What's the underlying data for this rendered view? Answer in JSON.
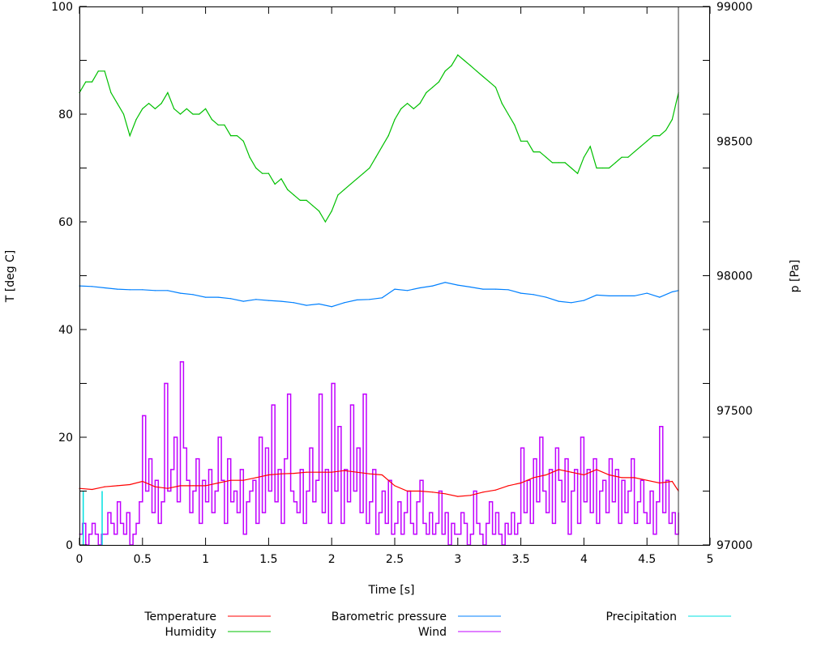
{
  "chart_data": {
    "type": "line",
    "title": "",
    "xlabel": "Time [s]",
    "ylabel": "T [deg C]",
    "y2label": "p [Pa]",
    "xlim": [
      0,
      5
    ],
    "ylim": [
      0,
      100
    ],
    "y2lim": [
      97000,
      99000
    ],
    "xticks": [
      "0",
      "0.5",
      "1",
      "1.5",
      "2",
      "2.5",
      "3",
      "3.5",
      "4",
      "4.5",
      "5"
    ],
    "yticks": [
      "0",
      "20",
      "40",
      "60",
      "80",
      "100"
    ],
    "y2ticks": [
      "97000",
      "97500",
      "98000",
      "98500",
      "99000"
    ],
    "grid": false,
    "legend_placement": "bottom",
    "series": [
      {
        "name": "Temperature",
        "color": "#ff0000",
        "axis": "y",
        "style": "lines",
        "x": [
          0,
          0.1,
          0.2,
          0.3,
          0.4,
          0.5,
          0.6,
          0.7,
          0.8,
          0.9,
          1.0,
          1.1,
          1.2,
          1.3,
          1.4,
          1.5,
          1.6,
          1.7,
          1.8,
          1.9,
          2.0,
          2.1,
          2.2,
          2.3,
          2.4,
          2.5,
          2.6,
          2.7,
          2.8,
          2.9,
          3.0,
          3.1,
          3.2,
          3.3,
          3.4,
          3.5,
          3.6,
          3.7,
          3.8,
          3.9,
          4.0,
          4.1,
          4.2,
          4.3,
          4.4,
          4.5,
          4.6,
          4.7,
          4.75
        ],
        "values": [
          10.5,
          10.3,
          10.8,
          11,
          11.2,
          11.8,
          10.8,
          10.5,
          11,
          11,
          11,
          11.5,
          12,
          12,
          12.5,
          13,
          13.2,
          13.3,
          13.5,
          13.5,
          13.5,
          13.8,
          13.5,
          13.2,
          13,
          11,
          10,
          10,
          9.8,
          9.5,
          9,
          9.2,
          9.8,
          10.2,
          11,
          11.5,
          12.5,
          13,
          14,
          13.5,
          13,
          14,
          13,
          12.5,
          12.5,
          12,
          11.5,
          11.8,
          10
        ]
      },
      {
        "name": "Humidity",
        "color": "#00c000",
        "axis": "y",
        "style": "lines",
        "x": [
          0,
          0.05,
          0.1,
          0.15,
          0.2,
          0.25,
          0.3,
          0.35,
          0.4,
          0.45,
          0.5,
          0.55,
          0.6,
          0.65,
          0.7,
          0.75,
          0.8,
          0.85,
          0.9,
          0.95,
          1.0,
          1.05,
          1.1,
          1.15,
          1.2,
          1.25,
          1.3,
          1.35,
          1.4,
          1.45,
          1.5,
          1.55,
          1.6,
          1.65,
          1.7,
          1.75,
          1.8,
          1.85,
          1.9,
          1.95,
          2.0,
          2.05,
          2.1,
          2.15,
          2.2,
          2.25,
          2.3,
          2.35,
          2.4,
          2.45,
          2.5,
          2.55,
          2.6,
          2.65,
          2.7,
          2.75,
          2.8,
          2.85,
          2.9,
          2.95,
          3.0,
          3.05,
          3.1,
          3.15,
          3.2,
          3.25,
          3.3,
          3.35,
          3.4,
          3.45,
          3.5,
          3.55,
          3.6,
          3.65,
          3.7,
          3.75,
          3.8,
          3.85,
          3.9,
          3.95,
          4.0,
          4.05,
          4.1,
          4.15,
          4.2,
          4.25,
          4.3,
          4.35,
          4.4,
          4.45,
          4.5,
          4.55,
          4.6,
          4.65,
          4.7,
          4.75
        ],
        "values": [
          84,
          86,
          86,
          88,
          88,
          84,
          82,
          80,
          76,
          79,
          81,
          82,
          81,
          82,
          84,
          81,
          80,
          81,
          80,
          80,
          81,
          79,
          78,
          78,
          76,
          76,
          75,
          72,
          70,
          69,
          69,
          67,
          68,
          66,
          65,
          64,
          64,
          63,
          62,
          60,
          62,
          65,
          66,
          67,
          68,
          69,
          70,
          72,
          74,
          76,
          79,
          81,
          82,
          81,
          82,
          84,
          85,
          86,
          88,
          89,
          91,
          90,
          89,
          88,
          87,
          86,
          85,
          82,
          80,
          78,
          75,
          75,
          73,
          73,
          72,
          71,
          71,
          71,
          70,
          69,
          72,
          74,
          70,
          70,
          70,
          71,
          72,
          72,
          73,
          74,
          75,
          76,
          76,
          77,
          79,
          84
        ]
      },
      {
        "name": "Barometric pressure",
        "color": "#0080ff",
        "axis": "y2",
        "style": "lines",
        "x": [
          0,
          0.1,
          0.2,
          0.3,
          0.4,
          0.5,
          0.6,
          0.7,
          0.8,
          0.9,
          1.0,
          1.1,
          1.2,
          1.3,
          1.4,
          1.5,
          1.6,
          1.7,
          1.8,
          1.9,
          2.0,
          2.1,
          2.2,
          2.3,
          2.4,
          2.5,
          2.6,
          2.7,
          2.8,
          2.9,
          3.0,
          3.1,
          3.2,
          3.3,
          3.4,
          3.5,
          3.6,
          3.7,
          3.8,
          3.9,
          4.0,
          4.1,
          4.2,
          4.3,
          4.4,
          4.5,
          4.6,
          4.7,
          4.75
        ],
        "values": [
          97962,
          97960,
          97955,
          97950,
          97948,
          97948,
          97945,
          97945,
          97935,
          97930,
          97920,
          97920,
          97915,
          97905,
          97912,
          97908,
          97905,
          97900,
          97890,
          97895,
          97885,
          97900,
          97910,
          97912,
          97918,
          97950,
          97945,
          97955,
          97962,
          97975,
          97965,
          97958,
          97950,
          97950,
          97948,
          97935,
          97930,
          97920,
          97905,
          97900,
          97908,
          97928,
          97925,
          97925,
          97925,
          97935,
          97920,
          97940,
          97945
        ]
      },
      {
        "name": "Wind",
        "color": "#c000ff",
        "axis": "y",
        "style": "steps",
        "x_start": 0,
        "x_step": 0.025,
        "values": [
          2,
          4,
          0,
          2,
          4,
          2,
          0,
          2,
          2,
          6,
          4,
          2,
          8,
          4,
          2,
          6,
          0,
          2,
          4,
          8,
          24,
          10,
          16,
          6,
          12,
          4,
          8,
          30,
          10,
          14,
          20,
          8,
          34,
          18,
          12,
          6,
          10,
          16,
          4,
          12,
          8,
          14,
          6,
          10,
          20,
          12,
          4,
          16,
          8,
          10,
          6,
          14,
          2,
          8,
          10,
          12,
          4,
          20,
          6,
          18,
          10,
          26,
          8,
          14,
          4,
          16,
          28,
          10,
          8,
          6,
          14,
          4,
          10,
          18,
          8,
          12,
          28,
          6,
          14,
          4,
          30,
          10,
          22,
          4,
          14,
          8,
          26,
          10,
          18,
          6,
          28,
          4,
          8,
          14,
          2,
          6,
          10,
          4,
          12,
          2,
          4,
          8,
          2,
          6,
          10,
          4,
          2,
          8,
          12,
          4,
          2,
          6,
          2,
          4,
          10,
          2,
          6,
          0,
          4,
          2,
          2,
          6,
          4,
          0,
          2,
          10,
          4,
          2,
          0,
          4,
          8,
          2,
          6,
          2,
          0,
          4,
          2,
          6,
          2,
          4,
          18,
          6,
          12,
          4,
          16,
          8,
          20,
          10,
          6,
          14,
          4,
          18,
          12,
          8,
          16,
          2,
          10,
          14,
          4,
          20,
          8,
          14,
          6,
          16,
          4,
          10,
          12,
          6,
          16,
          8,
          14,
          4,
          12,
          6,
          10,
          16,
          4,
          8,
          12,
          6,
          4,
          10,
          2,
          8,
          22,
          6,
          12,
          4,
          6,
          2,
          6
        ]
      },
      {
        "name": "Precipitation",
        "color": "#00e0e0",
        "axis": "y",
        "style": "impulses",
        "x": [
          0.03,
          0.18
        ],
        "values": [
          10,
          10
        ]
      }
    ]
  }
}
